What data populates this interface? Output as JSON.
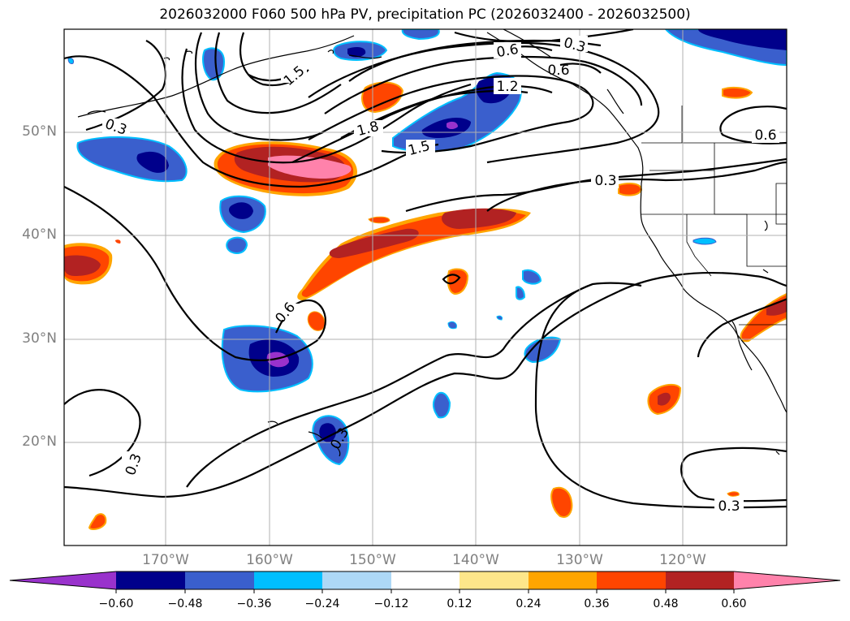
{
  "title": "2026032000 F060 500 hPa PV, precipitation PC (2026032400 - 2026032500)",
  "map": {
    "lat_labels": [
      "50°N",
      "40°N",
      "30°N",
      "20°N"
    ],
    "lon_labels": [
      "170°W",
      "160°W",
      "150°W",
      "140°W",
      "130°W",
      "120°W"
    ],
    "contour_labels": [
      "0.3",
      "0.6",
      "1.5",
      "1.8",
      "1.2",
      "0.6",
      "1.5",
      "0.3",
      "0.6",
      "0.3",
      "0.6",
      "0.3",
      "0.3",
      "0.3"
    ]
  },
  "colorbar": {
    "tick_labels": [
      "−0.60",
      "−0.48",
      "−0.36",
      "−0.24",
      "−0.12",
      "0.12",
      "0.24",
      "0.36",
      "0.48",
      "0.60"
    ],
    "colors": [
      "#9932cc",
      "#00008b",
      "#3a5fcd",
      "#00bfff",
      "#add8f6",
      "#ffffff",
      "#fde68a",
      "#ffa500",
      "#ff4500",
      "#b22222",
      "#ff82ab"
    ]
  },
  "colors": {
    "dark_purple": "#9932cc",
    "navy": "#00008b",
    "royal": "#3a5fcd",
    "sky": "#00bfff",
    "pale_blue": "#add8f6",
    "pale_yellow": "#fde68a",
    "orange": "#ffa500",
    "orange_red": "#ff4500",
    "firebrick": "#b22222",
    "pink": "#ff82ab"
  }
}
